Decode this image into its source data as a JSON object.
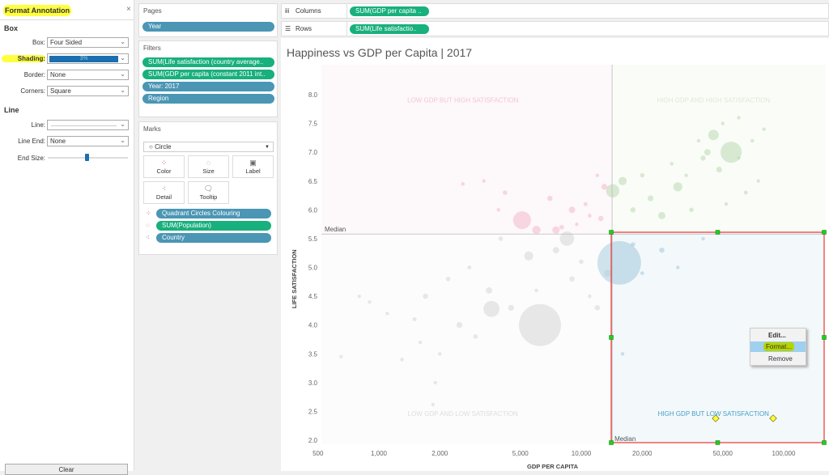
{
  "format_panel": {
    "title": "Format Annotation",
    "close": "×",
    "box_section": "Box",
    "line_section": "Line",
    "fields": {
      "box_label": "Box:",
      "box_value": "Four Sided",
      "shading_label": "Shading:",
      "shading_value": "3%",
      "border_label": "Border:",
      "border_value": "None",
      "corners_label": "Corners:",
      "corners_value": "Square",
      "line_label": "Line:",
      "line_end_label": "Line End:",
      "line_end_value": "None",
      "end_size_label": "End Size:"
    },
    "end_size_value": 0.5,
    "shading_color": "#1a6fb0",
    "clear": "Clear"
  },
  "pages": {
    "title": "Pages",
    "pills": [
      "Year"
    ]
  },
  "filters": {
    "title": "Filters",
    "pills": [
      "SUM(Life satisfaction (country average..",
      "SUM(GDP per capita (constant 2011 int..",
      "Year: 2017",
      "Region"
    ]
  },
  "marks": {
    "title": "Marks",
    "type": "Circle",
    "buttons": [
      "Color",
      "Size",
      "Label",
      "Detail",
      "Tooltip"
    ],
    "pills": [
      "Quadrant Circles Colouring",
      "SUM(Population)",
      "Country"
    ]
  },
  "shelves": {
    "columns_label": "Columns",
    "columns_pill": "SUM(GDP per capita ..",
    "rows_label": "Rows",
    "rows_pill": "SUM(Life satisfactio.."
  },
  "context_menu": [
    "Edit...",
    "Format...",
    "Remove"
  ],
  "chart_data": {
    "type": "scatter",
    "title": "Happiness vs GDP per Capita | 2017",
    "xlabel": "GDP PER CAPITA",
    "ylabel": "LIFE SATISFACTION",
    "xscale": "log",
    "xticks": [
      500,
      1000,
      2000,
      5000,
      10000,
      20000,
      50000,
      100000
    ],
    "xtick_labels": [
      "500",
      "1,000",
      "2,000",
      "5,000",
      "10,000",
      "20,000",
      "50,000",
      "100,000"
    ],
    "yticks": [
      "8.0",
      "7.5",
      "7.0",
      "6.5",
      "6.0",
      "5.5",
      "5.0",
      "4.5",
      "4.0",
      "3.5",
      "3.0",
      "2.5",
      "2.0"
    ],
    "ylim": [
      2.0,
      8.0
    ],
    "median_x": 14200,
    "median_y": 5.58,
    "median_label": "Median",
    "quadrants": {
      "tl": "LOW GDP BUT HIGH SATISFACTION",
      "tr": "HIGH GDP AND HIGH SATISFACTION",
      "bl": "LOW GDP AND LOW SATISFACTION",
      "br": "HIGH GDP BUT LOW SATISFACTION"
    },
    "colors": {
      "tl": "#f2b8cc",
      "tr": "#bcd9b0",
      "bl": "#d6d6d6",
      "br": "#a9cde0"
    },
    "points": [
      [
        5100,
        5.82,
        233
      ],
      [
        2600,
        6.45,
        10
      ],
      [
        3300,
        6.5,
        8
      ],
      [
        4200,
        6.3,
        15
      ],
      [
        7000,
        6.2,
        20
      ],
      [
        9000,
        6.0,
        30
      ],
      [
        11000,
        5.9,
        10
      ],
      [
        12500,
        5.85,
        20
      ],
      [
        6000,
        5.65,
        50
      ],
      [
        8000,
        5.7,
        15
      ],
      [
        10500,
        6.1,
        12
      ],
      [
        13000,
        6.4,
        25
      ],
      [
        12000,
        6.6,
        8
      ],
      [
        3900,
        6.0,
        5
      ],
      [
        7500,
        5.65,
        40
      ],
      [
        9500,
        5.75,
        8
      ],
      [
        55000,
        7.0,
        330
      ],
      [
        14300,
        6.33,
        130
      ],
      [
        22000,
        6.2,
        25
      ],
      [
        30000,
        6.4,
        60
      ],
      [
        40000,
        6.9,
        20
      ],
      [
        45000,
        7.3,
        80
      ],
      [
        50000,
        7.5,
        10
      ],
      [
        60000,
        7.6,
        8
      ],
      [
        70000,
        7.2,
        5
      ],
      [
        80000,
        7.4,
        9
      ],
      [
        35000,
        6.0,
        15
      ],
      [
        25000,
        5.9,
        40
      ],
      [
        18000,
        6.0,
        20
      ],
      [
        16000,
        6.5,
        50
      ],
      [
        42000,
        7.0,
        30
      ],
      [
        48000,
        6.7,
        25
      ],
      [
        65000,
        6.3,
        12
      ],
      [
        28000,
        6.8,
        10
      ],
      [
        52000,
        6.1,
        5
      ],
      [
        38000,
        7.2,
        6
      ],
      [
        60000,
        6.9,
        4
      ],
      [
        75000,
        6.5,
        6
      ],
      [
        20000,
        6.6,
        15
      ],
      [
        33000,
        6.6,
        8
      ],
      [
        6250,
        4.0,
        1300
      ],
      [
        3600,
        4.28,
        190
      ],
      [
        1850,
        2.62,
        8
      ],
      [
        650,
        3.45,
        5
      ],
      [
        1300,
        3.4,
        10
      ],
      [
        1900,
        3.0,
        5
      ],
      [
        1700,
        4.5,
        20
      ],
      [
        2200,
        4.8,
        15
      ],
      [
        2800,
        5.0,
        12
      ],
      [
        3500,
        4.6,
        30
      ],
      [
        4500,
        4.3,
        25
      ],
      [
        5500,
        5.2,
        60
      ],
      [
        7500,
        5.3,
        30
      ],
      [
        9000,
        4.8,
        20
      ],
      [
        11000,
        4.5,
        10
      ],
      [
        13500,
        4.9,
        40
      ],
      [
        4000,
        5.5,
        15
      ],
      [
        8500,
        5.5,
        150
      ],
      [
        1500,
        4.1,
        12
      ],
      [
        900,
        4.4,
        8
      ],
      [
        1100,
        4.2,
        6
      ],
      [
        2500,
        4.0,
        25
      ],
      [
        3000,
        3.8,
        15
      ],
      [
        1600,
        3.7,
        6
      ],
      [
        2000,
        3.5,
        4
      ],
      [
        6000,
        4.6,
        10
      ],
      [
        10000,
        5.1,
        15
      ],
      [
        12000,
        4.3,
        20
      ],
      [
        800,
        4.5,
        5
      ],
      [
        15400,
        5.08,
        1400
      ],
      [
        20000,
        4.9,
        10
      ],
      [
        25000,
        5.3,
        20
      ],
      [
        40000,
        5.5,
        8
      ],
      [
        16000,
        3.5,
        4
      ],
      [
        18000,
        5.4,
        15
      ],
      [
        30000,
        5.0,
        6
      ]
    ]
  }
}
